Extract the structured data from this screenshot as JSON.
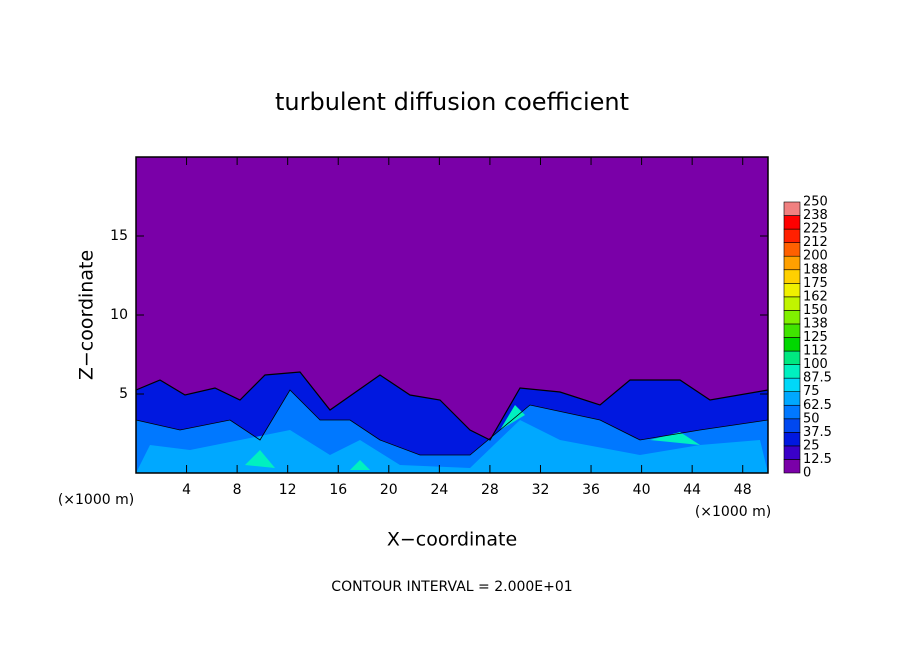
{
  "chart_data": {
    "type": "contour",
    "title": "turbulent diffusion coefficient",
    "x_label": "X−coordinate",
    "y_label": "Z−coordinate",
    "x_unit": "(×1000 m)",
    "note": "CONTOUR INTERVAL = 2.000E+01",
    "background": "#7a00a8",
    "xlim": [
      0,
      50
    ],
    "xticks": [
      4,
      8,
      12,
      16,
      20,
      24,
      28,
      32,
      36,
      40,
      44,
      48
    ],
    "ylim": [
      0,
      20
    ],
    "yticks": [
      5,
      10,
      15
    ],
    "colorbar": {
      "levels": [
        0,
        12.5,
        25,
        37.5,
        50,
        62.5,
        75,
        87.5,
        100,
        {
          "value": 112.5,
          "label": "112"
        },
        125,
        {
          "value": 137.5,
          "label": "138"
        },
        150,
        {
          "value": 162.5,
          "label": "162"
        },
        175,
        {
          "value": 187.5,
          "label": "188"
        },
        200,
        {
          "value": 212.5,
          "label": "212"
        },
        225,
        {
          "value": 237.5,
          "label": "238"
        },
        250
      ],
      "colors": [
        "#7a00a8",
        "#3a00c8",
        "#0018e0",
        "#0048f0",
        "#0078ff",
        "#00a8ff",
        "#00d8f8",
        "#00f0c0",
        "#00e880",
        "#00d800",
        "#40e400",
        "#80f000",
        "#c0f400",
        "#f0f000",
        "#ffd000",
        "#ffa000",
        "#ff6000",
        "#ff2000",
        "#ff0000",
        "#f08080"
      ]
    }
  }
}
